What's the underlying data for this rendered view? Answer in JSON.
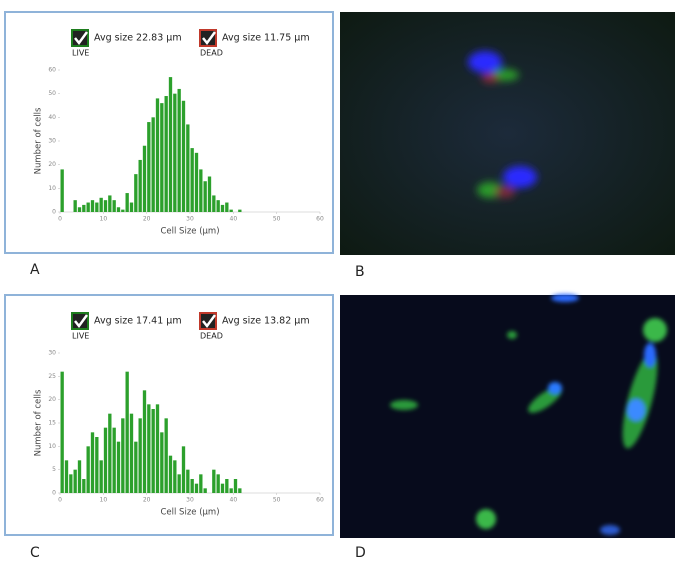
{
  "panels": [
    "A",
    "B",
    "C",
    "D"
  ],
  "chart_data": [
    {
      "type": "histogram",
      "xlabel": "Cell Size (µm)",
      "ylabel": "Number of cells",
      "color": "#2ca02c",
      "bins": [
        0,
        1,
        2,
        3,
        4,
        5,
        6,
        7,
        8,
        9,
        10,
        11,
        12,
        13,
        14,
        15,
        16,
        17,
        18,
        19,
        20,
        21,
        22,
        23,
        24,
        25,
        26,
        27,
        28,
        29,
        30,
        31,
        32,
        33,
        34,
        35,
        36,
        37,
        38,
        39,
        40,
        41,
        42
      ],
      "values": [
        18,
        0,
        0,
        5,
        2,
        3,
        4,
        5,
        4,
        6,
        5,
        7,
        5,
        2,
        1,
        8,
        4,
        16,
        22,
        28,
        38,
        40,
        48,
        46,
        49,
        57,
        50,
        52,
        47,
        37,
        27,
        25,
        18,
        13,
        15,
        7,
        5,
        3,
        4,
        1,
        0,
        1
      ],
      "xlim": [
        0,
        60
      ],
      "xticks": [
        0,
        10,
        20,
        30,
        40,
        50,
        60
      ],
      "ylim": [
        0,
        60
      ],
      "yticks": [
        0,
        10,
        20,
        30,
        40,
        50,
        60
      ],
      "legend": [
        {
          "label": "LIVE",
          "text": "Avg size 22.83 µm",
          "color": "#1e7d1e"
        },
        {
          "label": "DEAD",
          "text": "Avg size 11.75 µm",
          "color": "#c0392b"
        }
      ]
    },
    {
      "type": "histogram",
      "xlabel": "Cell Size (µm)",
      "ylabel": "Number of cells",
      "color": "#2ca02c",
      "bins": [
        0,
        1,
        2,
        3,
        4,
        5,
        6,
        7,
        8,
        9,
        10,
        11,
        12,
        13,
        14,
        15,
        16,
        17,
        18,
        19,
        20,
        21,
        22,
        23,
        24,
        25,
        26,
        27,
        28,
        29,
        30,
        31,
        32,
        33,
        34,
        35,
        36,
        37,
        38,
        39,
        40,
        41,
        42
      ],
      "values": [
        26,
        7,
        4,
        5,
        7,
        3,
        10,
        13,
        12,
        7,
        14,
        17,
        14,
        11,
        16,
        26,
        17,
        11,
        16,
        22,
        19,
        18,
        19,
        13,
        16,
        8,
        7,
        4,
        10,
        5,
        3,
        2,
        4,
        1,
        0,
        5,
        4,
        2,
        3,
        1,
        3,
        1
      ],
      "xlim": [
        0,
        60
      ],
      "xticks": [
        0,
        10,
        20,
        30,
        40,
        50,
        60
      ],
      "ylim": [
        0,
        30
      ],
      "yticks": [
        0,
        5,
        10,
        15,
        20,
        25,
        30
      ],
      "legend": [
        {
          "label": "LIVE",
          "text": "Avg size 17.41 µm",
          "color": "#1e7d1e"
        },
        {
          "label": "DEAD",
          "text": "Avg size 13.82 µm",
          "color": "#c0392b"
        }
      ]
    }
  ]
}
